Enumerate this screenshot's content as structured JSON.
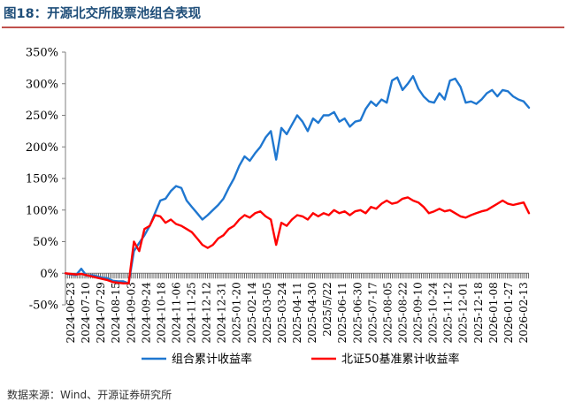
{
  "figure": {
    "title": "图18：开源北交所股票池组合表现",
    "source": "数据来源：Wind、开源证券研究所"
  },
  "colors": {
    "portfolio": "#1f77d0",
    "benchmark": "#ff0000",
    "axis": "#7f7f7f",
    "bg": "#ffffff"
  },
  "chart_data": {
    "type": "line",
    "title": "",
    "xlabel": "",
    "ylabel": "",
    "ylim": [
      -50,
      350
    ],
    "y_ticks": [
      "-50%",
      "0%",
      "50%",
      "100%",
      "150%",
      "200%",
      "250%",
      "300%",
      "350%"
    ],
    "x_ticks": [
      "2024-06-23",
      "2024-07-10",
      "2024-07-29",
      "2024-08-15",
      "2024-09-03",
      "2024-09-24",
      "2024-10-18",
      "2024-11-06",
      "2024-11-25",
      "2024-12-12",
      "2024-12-31",
      "2025-01-20",
      "2025-02-14",
      "2025-03-05",
      "2025-03-24",
      "2025-04-11",
      "2025-04-30",
      "2025/5/22",
      "2025-06-11",
      "2025-06-30",
      "2025-07-17",
      "2025-08-05",
      "2025-08-22",
      "2025-09-10",
      "2025-10-24",
      "2025-11-12",
      "2025-12-01",
      "2025-12-18",
      "2026-01-08",
      "2026-01-27",
      "2026-02-13"
    ],
    "grid": false,
    "legend_position": "bottom",
    "series": [
      {
        "name": "组合累计收益率",
        "values": [
          0,
          -2,
          -3,
          7,
          -4,
          -3,
          -5,
          -7,
          -8,
          -12,
          -13,
          -13,
          -16,
          35,
          48,
          60,
          75,
          95,
          115,
          118,
          130,
          138,
          135,
          115,
          105,
          95,
          85,
          92,
          100,
          108,
          118,
          135,
          150,
          170,
          185,
          178,
          190,
          200,
          215,
          225,
          180,
          230,
          220,
          235,
          250,
          240,
          225,
          245,
          238,
          250,
          250,
          255,
          240,
          245,
          232,
          240,
          242,
          260,
          272,
          265,
          275,
          270,
          305,
          310,
          290,
          300,
          312,
          292,
          280,
          272,
          270,
          285,
          275,
          305,
          308,
          295,
          270,
          272,
          268,
          275,
          285,
          290,
          280,
          290,
          288,
          280,
          275,
          272,
          262
        ]
      },
      {
        "name": "北证50基准累计收益率",
        "values": [
          0,
          -1,
          -2,
          -1,
          -3,
          -5,
          -7,
          -9,
          -11,
          -14,
          -15,
          -16,
          -16,
          50,
          35,
          70,
          75,
          92,
          90,
          80,
          85,
          78,
          75,
          70,
          65,
          55,
          45,
          40,
          45,
          55,
          60,
          70,
          75,
          85,
          92,
          88,
          95,
          98,
          90,
          85,
          45,
          80,
          75,
          85,
          92,
          90,
          85,
          95,
          90,
          95,
          92,
          100,
          95,
          98,
          92,
          98,
          100,
          95,
          105,
          102,
          110,
          115,
          110,
          112,
          118,
          120,
          115,
          112,
          105,
          95,
          98,
          102,
          98,
          100,
          95,
          90,
          88,
          92,
          95,
          98,
          100,
          105,
          110,
          115,
          110,
          108,
          110,
          112,
          95
        ]
      }
    ]
  }
}
